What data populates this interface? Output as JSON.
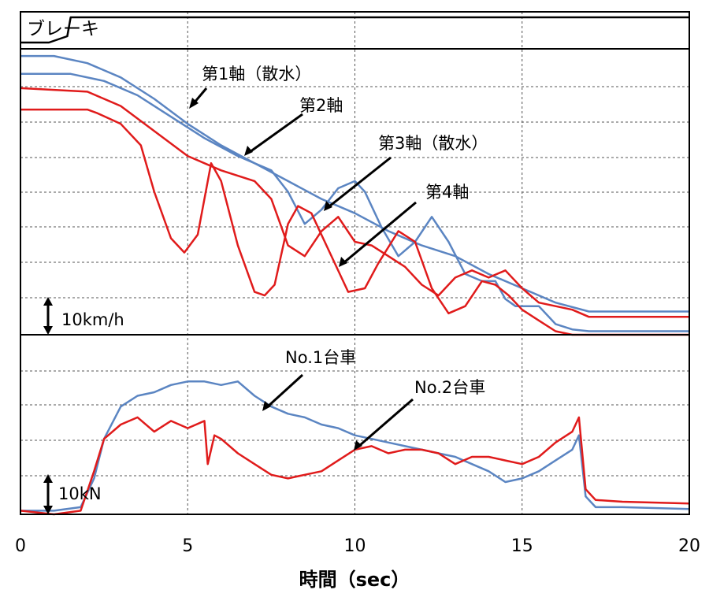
{
  "chart_data": [
    {
      "panel": "brake",
      "type": "line",
      "title": "ブレーキ",
      "series": [
        {
          "color": "#000000",
          "x": [
            0,
            0.85,
            1.4,
            1.5,
            20
          ],
          "y": [
            0,
            0,
            0.25,
            1,
            1
          ]
        }
      ],
      "xlim": [
        0,
        20
      ],
      "grid": true
    },
    {
      "panel": "speed",
      "type": "line",
      "scale_label": "10km/h",
      "ylim": [
        0,
        80
      ],
      "xlim": [
        0,
        20
      ],
      "grid": true,
      "annotations": [
        "第1軸（散水）",
        "第2軸",
        "第3軸（散水）",
        "第4軸"
      ],
      "series": [
        {
          "color": "#5b85c2",
          "x": [
            0,
            1,
            2,
            3,
            4,
            5,
            6,
            7,
            8,
            9,
            10,
            11,
            12,
            13,
            14,
            15,
            16,
            17,
            18,
            19,
            20
          ],
          "y": [
            78,
            78,
            76,
            72,
            66,
            59,
            53,
            48,
            43,
            38,
            34,
            29,
            25,
            22,
            17,
            13,
            9,
            6.5,
            6.5,
            6.5,
            6.5
          ]
        },
        {
          "color": "#5b85c2",
          "x": [
            0,
            1.5,
            2.5,
            3.5,
            4.5,
            5.5,
            6.5,
            7.5,
            8,
            8.5,
            9,
            9.5,
            10,
            10.3,
            10.8,
            11.3,
            11.8,
            12.3,
            12.8,
            13.3,
            13.8,
            14.2,
            14.5,
            14.8,
            15.5,
            16,
            16.5,
            17,
            20
          ],
          "y": [
            73,
            73,
            71,
            67,
            61,
            55,
            50,
            46,
            40,
            31,
            35,
            41,
            43,
            40,
            30,
            22,
            26,
            33,
            26,
            17,
            15,
            15,
            10,
            8,
            8,
            3,
            1.5,
            1,
            1
          ]
        },
        {
          "color": "#e01b1b",
          "x": [
            0,
            2,
            3,
            4,
            5,
            6,
            7,
            7.5,
            8,
            8.5,
            9,
            9.5,
            10,
            10.5,
            11,
            11.5,
            12,
            12.5,
            13,
            13.5,
            14,
            14.5,
            15,
            15.5,
            16,
            16.5,
            17,
            17.5,
            18,
            18.5,
            20
          ],
          "y": [
            69,
            68,
            64,
            57,
            50,
            46,
            43,
            38,
            25,
            22,
            29,
            33,
            26,
            25,
            22,
            19,
            14,
            11,
            16,
            18,
            16,
            18,
            13,
            9,
            8,
            7,
            5,
            5,
            5,
            5,
            5
          ]
        },
        {
          "color": "#e01b1b",
          "x": [
            0,
            2,
            2.3,
            3,
            3.6,
            4,
            4.5,
            4.9,
            5.3,
            5.7,
            6,
            6.5,
            7,
            7.3,
            7.6,
            8,
            8.3,
            8.7,
            9.2,
            9.8,
            10.3,
            10.7,
            11.3,
            11.8,
            12.3,
            12.8,
            13.3,
            13.8,
            14.2,
            14.6,
            15,
            15.5,
            16,
            16.5,
            17,
            20
          ],
          "y": [
            63,
            63,
            62,
            59,
            53,
            40,
            27,
            23,
            28,
            48,
            43,
            25,
            12,
            11,
            14,
            31,
            36,
            34,
            24,
            12,
            13,
            20,
            29,
            26,
            13,
            6,
            8,
            15,
            14,
            11,
            7,
            4,
            1,
            0,
            0,
            0
          ]
        }
      ]
    },
    {
      "panel": "force",
      "type": "line",
      "scale_label": "10kN",
      "ylim": [
        0,
        50
      ],
      "xlim": [
        0,
        20
      ],
      "grid": true,
      "annotations": [
        "No.1台車",
        "No.2台車"
      ],
      "series": [
        {
          "color": "#5b85c2",
          "x": [
            0,
            1,
            1.8,
            2.2,
            2.5,
            3,
            3.5,
            4,
            4.5,
            5,
            5.5,
            6,
            6.5,
            7,
            7.5,
            8,
            8.5,
            9,
            9.5,
            10,
            10.5,
            11,
            11.5,
            12,
            12.5,
            13,
            13.5,
            14,
            14.5,
            15,
            15.5,
            16,
            16.5,
            16.7,
            16.9,
            17.2,
            18,
            20
          ],
          "y": [
            1,
            1,
            2,
            10,
            21,
            30,
            33,
            34,
            36,
            37,
            37,
            36,
            37,
            33,
            30,
            28,
            27,
            25,
            24,
            22,
            21,
            20,
            19,
            18,
            17,
            16,
            14,
            12,
            9,
            10,
            12,
            15,
            18,
            22,
            5,
            2,
            2,
            1.5
          ]
        },
        {
          "color": "#e01b1b",
          "x": [
            0,
            1,
            1.8,
            2.2,
            2.5,
            3,
            3.5,
            4,
            4.5,
            5,
            5.5,
            5.6,
            5.8,
            6,
            6.5,
            7,
            7.5,
            8,
            8.5,
            9,
            9.5,
            10,
            10.5,
            11,
            11.5,
            12,
            12.5,
            13,
            13.5,
            14,
            14.5,
            15,
            15.5,
            16,
            16.5,
            16.7,
            16.9,
            17.2,
            18,
            20
          ],
          "y": [
            1,
            0,
            1,
            12,
            21,
            25,
            27,
            23,
            26,
            24,
            26,
            14,
            22,
            21,
            17,
            14,
            11,
            10,
            11,
            12,
            15,
            18,
            19,
            17,
            18,
            18,
            17,
            14,
            16,
            16,
            15,
            14,
            16,
            20,
            23,
            27,
            7,
            4,
            3.5,
            3
          ]
        }
      ]
    }
  ],
  "xaxis": {
    "ticks": [
      "0",
      "5",
      "10",
      "15",
      "20"
    ],
    "label": "時間（sec）"
  }
}
